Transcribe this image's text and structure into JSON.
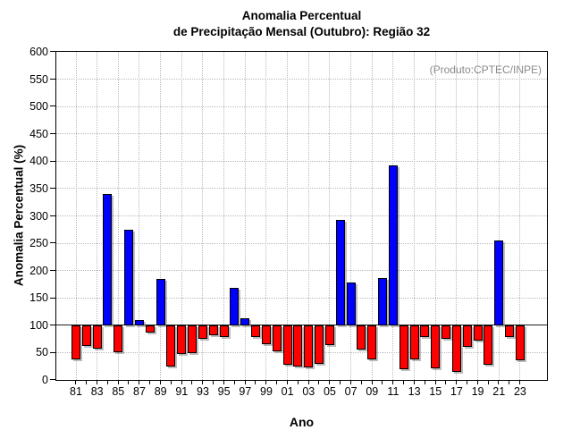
{
  "chart_data": {
    "type": "bar",
    "title_line1": "Anomalia Percentual",
    "title_line2": "de Precipitação Mensal (Outubro): Região 32",
    "watermark": "(Produto:CPTEC/INPE)",
    "xlabel": "Ano",
    "ylabel": "Anomalia Percentual (%)",
    "ylim": [
      0,
      600
    ],
    "ytick_step": 50,
    "baseline": 100,
    "grid": "dotted",
    "xtick_label_every": 2,
    "colors": {
      "positive": "#0000ff",
      "negative": "#ff0000",
      "outline": "#000000",
      "grid": "#b9b9b9",
      "watermark": "#8a8a8a"
    },
    "categories": [
      "81",
      "82",
      "83",
      "84",
      "85",
      "86",
      "87",
      "88",
      "89",
      "90",
      "91",
      "92",
      "93",
      "94",
      "95",
      "96",
      "97",
      "98",
      "99",
      "00",
      "01",
      "02",
      "03",
      "04",
      "05",
      "06",
      "07",
      "08",
      "09",
      "10",
      "11",
      "12",
      "13",
      "14",
      "15",
      "16",
      "17",
      "18",
      "19",
      "20",
      "21",
      "22",
      "23"
    ],
    "values": [
      37,
      62,
      58,
      340,
      51,
      275,
      109,
      86,
      184,
      24,
      47,
      49,
      75,
      82,
      79,
      168,
      113,
      78,
      66,
      52,
      28,
      25,
      23,
      30,
      63,
      293,
      178,
      56,
      37,
      186,
      393,
      20,
      37,
      78,
      22,
      75,
      15,
      60,
      72,
      28,
      255,
      79,
      36
    ]
  }
}
